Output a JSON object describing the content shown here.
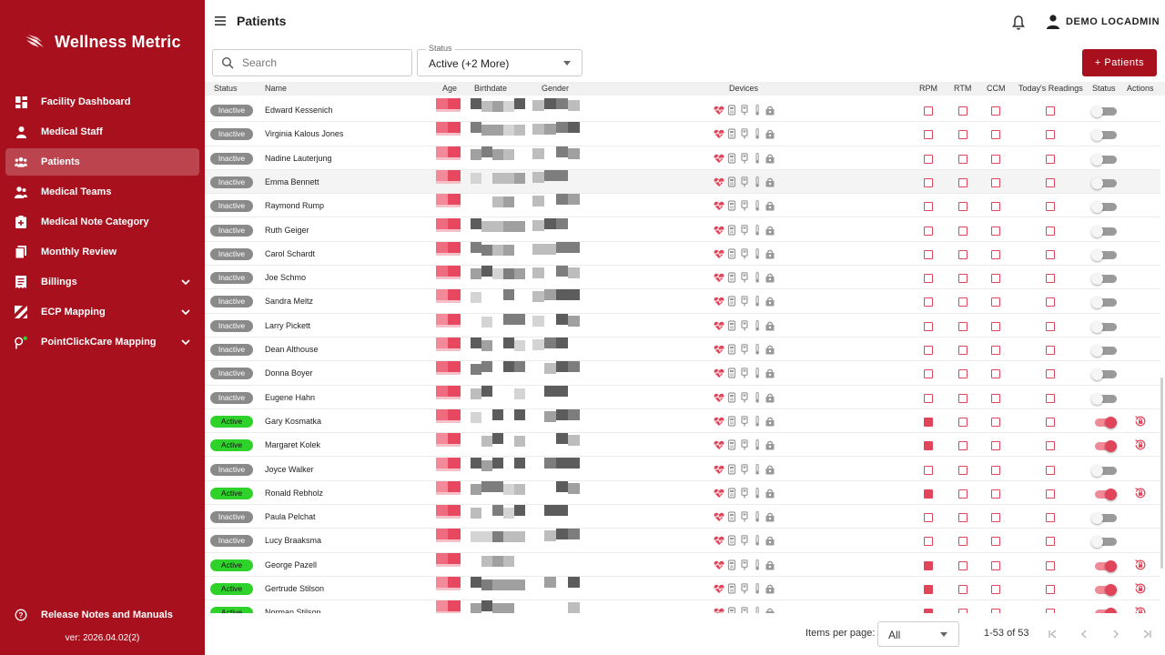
{
  "app": {
    "brand": "Wellness Metric",
    "version": "ver: 2026.04.02(2)",
    "accent": "#a8101d",
    "pink": "#e0455a"
  },
  "sidebar": {
    "items": [
      {
        "label": "Facility Dashboard",
        "icon": "dashboard-icon",
        "active": false,
        "expandable": false
      },
      {
        "label": "Medical Staff",
        "icon": "medical-staff-icon",
        "active": false,
        "expandable": false
      },
      {
        "label": "Patients",
        "icon": "patients-icon",
        "active": true,
        "expandable": false
      },
      {
        "label": "Medical Teams",
        "icon": "medical-teams-icon",
        "active": false,
        "expandable": false
      },
      {
        "label": "Medical Note Category",
        "icon": "medical-note-icon",
        "active": false,
        "expandable": false
      },
      {
        "label": "Monthly Review",
        "icon": "monthly-review-icon",
        "active": false,
        "expandable": false
      },
      {
        "label": "Billings",
        "icon": "billings-icon",
        "active": false,
        "expandable": true
      },
      {
        "label": "ECP Mapping",
        "icon": "ecp-mapping-icon",
        "active": false,
        "expandable": true
      },
      {
        "label": "PointClickCare Mapping",
        "icon": "pointclickcare-icon",
        "active": false,
        "expandable": true
      }
    ],
    "release": "Release Notes and Manuals"
  },
  "header": {
    "title": "Patients",
    "user": "DEMO LOCADMIN"
  },
  "toolbar": {
    "search_placeholder": "Search",
    "status_label": "Status",
    "status_value": "Active (+2 More)",
    "add_label": "+ Patients"
  },
  "table": {
    "columns": [
      "Status",
      "Name",
      "Age",
      "Birthdate",
      "Gender",
      "Devices",
      "RPM",
      "RTM",
      "CCM",
      "Today's Readings",
      "Status",
      "Actions"
    ],
    "rows": [
      {
        "status": "Inactive",
        "name": "Edward Kessenich",
        "rpm": false,
        "rtm": false,
        "ccm": false,
        "readings": false,
        "enabled": false
      },
      {
        "status": "Inactive",
        "name": "Virginia Kalous Jones",
        "rpm": false,
        "rtm": false,
        "ccm": false,
        "readings": false,
        "enabled": false
      },
      {
        "status": "Inactive",
        "name": "Nadine Lauterjung",
        "rpm": false,
        "rtm": false,
        "ccm": false,
        "readings": false,
        "enabled": false
      },
      {
        "status": "Inactive",
        "name": "Emma Bennett",
        "rpm": false,
        "rtm": false,
        "ccm": false,
        "readings": false,
        "enabled": false
      },
      {
        "status": "Inactive",
        "name": "Raymond Rump",
        "rpm": false,
        "rtm": false,
        "ccm": false,
        "readings": false,
        "enabled": false
      },
      {
        "status": "Inactive",
        "name": "Ruth Geiger",
        "rpm": false,
        "rtm": false,
        "ccm": false,
        "readings": false,
        "enabled": false
      },
      {
        "status": "Inactive",
        "name": "Carol Schardt",
        "rpm": false,
        "rtm": false,
        "ccm": false,
        "readings": false,
        "enabled": false
      },
      {
        "status": "Inactive",
        "name": "Joe Schmo",
        "rpm": false,
        "rtm": false,
        "ccm": false,
        "readings": false,
        "enabled": false
      },
      {
        "status": "Inactive",
        "name": "Sandra Meltz",
        "rpm": false,
        "rtm": false,
        "ccm": false,
        "readings": false,
        "enabled": false
      },
      {
        "status": "Inactive",
        "name": "Larry Pickett",
        "rpm": false,
        "rtm": false,
        "ccm": false,
        "readings": false,
        "enabled": false
      },
      {
        "status": "Inactive",
        "name": "Dean Althouse",
        "rpm": false,
        "rtm": false,
        "ccm": false,
        "readings": false,
        "enabled": false
      },
      {
        "status": "Inactive",
        "name": "Donna Boyer",
        "rpm": false,
        "rtm": false,
        "ccm": false,
        "readings": false,
        "enabled": false
      },
      {
        "status": "Inactive",
        "name": "Eugene Hahn",
        "rpm": false,
        "rtm": false,
        "ccm": false,
        "readings": false,
        "enabled": false
      },
      {
        "status": "Active",
        "name": "Gary Kosmatka",
        "rpm": true,
        "rtm": false,
        "ccm": false,
        "readings": false,
        "enabled": true
      },
      {
        "status": "Active",
        "name": "Margaret Kolek",
        "rpm": true,
        "rtm": false,
        "ccm": false,
        "readings": false,
        "enabled": true
      },
      {
        "status": "Inactive",
        "name": "Joyce Walker",
        "rpm": false,
        "rtm": false,
        "ccm": false,
        "readings": false,
        "enabled": false
      },
      {
        "status": "Active",
        "name": "Ronald Rebholz",
        "rpm": true,
        "rtm": false,
        "ccm": false,
        "readings": false,
        "enabled": true
      },
      {
        "status": "Inactive",
        "name": "Paula Pelchat",
        "rpm": false,
        "rtm": false,
        "ccm": false,
        "readings": false,
        "enabled": false
      },
      {
        "status": "Inactive",
        "name": "Lucy Braaksma",
        "rpm": false,
        "rtm": false,
        "ccm": false,
        "readings": false,
        "enabled": false
      },
      {
        "status": "Active",
        "name": "George Pazell",
        "rpm": true,
        "rtm": false,
        "ccm": false,
        "readings": false,
        "enabled": true
      },
      {
        "status": "Active",
        "name": "Gertrude Stilson",
        "rpm": true,
        "rtm": false,
        "ccm": false,
        "readings": false,
        "enabled": true
      },
      {
        "status": "Active",
        "name": "Norman Stilson",
        "rpm": true,
        "rtm": false,
        "ccm": false,
        "readings": false,
        "enabled": true
      }
    ],
    "device_icons": [
      "heart-device-icon",
      "scale-device-icon",
      "glucometer-icon",
      "thermometer-icon",
      "oximeter-icon"
    ]
  },
  "footer": {
    "items_per_page_label": "Items per page:",
    "items_per_page_value": "All",
    "range": "1-53 of 53"
  }
}
